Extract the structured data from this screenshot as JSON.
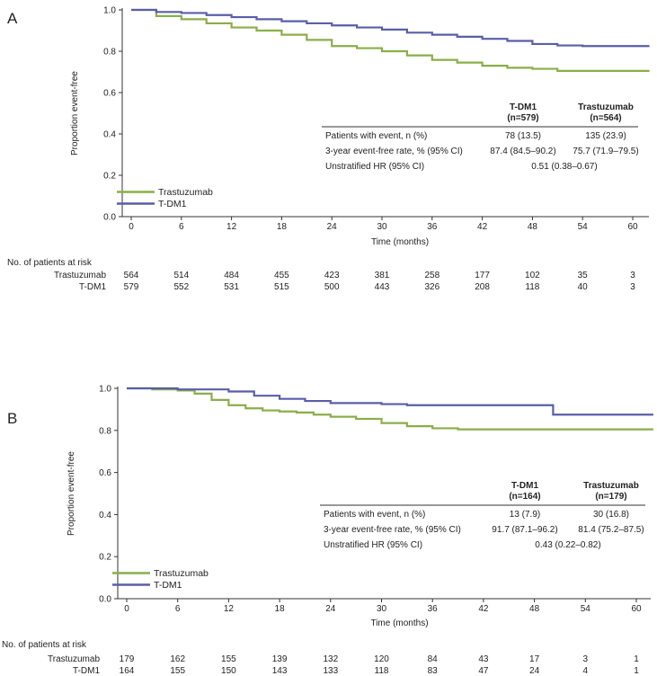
{
  "chart_data": [
    {
      "panel_label": "A",
      "type": "line",
      "xlabel": "Time (months)",
      "ylabel": "Proportion event-free",
      "xlim": [
        0,
        62
      ],
      "ylim": [
        0,
        1.0
      ],
      "x_ticks": [
        0,
        6,
        12,
        18,
        24,
        30,
        36,
        42,
        48,
        54,
        60
      ],
      "y_ticks": [
        "0.0",
        "0.2",
        "0.4",
        "0.6",
        "0.8",
        "1.0"
      ],
      "legend": [
        "Trastuzumab",
        "T-DM1"
      ],
      "series": [
        {
          "name": "Trastuzumab",
          "color": "#8aae48",
          "points": [
            [
              0,
              1.0
            ],
            [
              3,
              0.97
            ],
            [
              6,
              0.955
            ],
            [
              9,
              0.935
            ],
            [
              12,
              0.915
            ],
            [
              15,
              0.9
            ],
            [
              18,
              0.88
            ],
            [
              21,
              0.855
            ],
            [
              24,
              0.825
            ],
            [
              27,
              0.815
            ],
            [
              30,
              0.8
            ],
            [
              33,
              0.78
            ],
            [
              36,
              0.758
            ],
            [
              39,
              0.745
            ],
            [
              42,
              0.73
            ],
            [
              45,
              0.72
            ],
            [
              48,
              0.715
            ],
            [
              51,
              0.705
            ],
            [
              54,
              0.705
            ],
            [
              57,
              0.705
            ],
            [
              62,
              0.705
            ]
          ]
        },
        {
          "name": "T-DM1",
          "color": "#5a5ea8",
          "points": [
            [
              0,
              1.0
            ],
            [
              3,
              0.99
            ],
            [
              6,
              0.985
            ],
            [
              9,
              0.975
            ],
            [
              12,
              0.965
            ],
            [
              15,
              0.955
            ],
            [
              18,
              0.945
            ],
            [
              21,
              0.935
            ],
            [
              24,
              0.925
            ],
            [
              27,
              0.915
            ],
            [
              30,
              0.905
            ],
            [
              33,
              0.89
            ],
            [
              36,
              0.88
            ],
            [
              39,
              0.87
            ],
            [
              42,
              0.86
            ],
            [
              45,
              0.85
            ],
            [
              48,
              0.835
            ],
            [
              51,
              0.828
            ],
            [
              54,
              0.825
            ],
            [
              62,
              0.825
            ]
          ]
        }
      ],
      "stats": {
        "col1_head": "T-DM1",
        "col1_n": "(n=579)",
        "col2_head": "Trastuzumab",
        "col2_n": "(n=564)",
        "rows": [
          {
            "label": "Patients with event, n (%)",
            "v1": "78 (13.5)",
            "v2": "135 (23.9)"
          },
          {
            "label": "3-year event-free rate, % (95% CI)",
            "v1": "87.4 (84.5–90.2)",
            "v2": "75.7 (71.9–79.5)"
          }
        ],
        "hr_label": "Unstratified HR (95% CI)",
        "hr_value": "0.51 (0.38–0.67)"
      },
      "risk_title": "No. of patients at risk",
      "risk_rows": [
        {
          "name": "Trastuzumab",
          "values": [
            "564",
            "514",
            "484",
            "455",
            "423",
            "381",
            "258",
            "177",
            "102",
            "35",
            "3"
          ]
        },
        {
          "name": "T-DM1",
          "values": [
            "579",
            "552",
            "531",
            "515",
            "500",
            "443",
            "326",
            "208",
            "118",
            "40",
            "3"
          ]
        }
      ]
    },
    {
      "panel_label": "B",
      "type": "line",
      "xlabel": "Time (months)",
      "ylabel": "Proportion event-free",
      "xlim": [
        0,
        62
      ],
      "ylim": [
        0,
        1.0
      ],
      "x_ticks": [
        0,
        6,
        12,
        18,
        24,
        30,
        36,
        42,
        48,
        54,
        60
      ],
      "y_ticks": [
        "0.0",
        "0.2",
        "0.4",
        "0.6",
        "0.8",
        "1.0"
      ],
      "legend": [
        "Trastuzumab",
        "T-DM1"
      ],
      "series": [
        {
          "name": "Trastuzumab",
          "color": "#8aae48",
          "points": [
            [
              0,
              1.0
            ],
            [
              3,
              0.995
            ],
            [
              6,
              0.99
            ],
            [
              8,
              0.975
            ],
            [
              10,
              0.945
            ],
            [
              12,
              0.92
            ],
            [
              14,
              0.905
            ],
            [
              16,
              0.895
            ],
            [
              18,
              0.89
            ],
            [
              20,
              0.885
            ],
            [
              22,
              0.875
            ],
            [
              24,
              0.865
            ],
            [
              27,
              0.855
            ],
            [
              30,
              0.835
            ],
            [
              33,
              0.82
            ],
            [
              36,
              0.81
            ],
            [
              39,
              0.805
            ],
            [
              62,
              0.805
            ]
          ]
        },
        {
          "name": "T-DM1",
          "color": "#5a5ea8",
          "points": [
            [
              0,
              1.0
            ],
            [
              6,
              0.995
            ],
            [
              12,
              0.985
            ],
            [
              15,
              0.965
            ],
            [
              18,
              0.95
            ],
            [
              21,
              0.94
            ],
            [
              24,
              0.93
            ],
            [
              30,
              0.925
            ],
            [
              33,
              0.92
            ],
            [
              50,
              0.92
            ],
            [
              50.2,
              0.875
            ],
            [
              62,
              0.875
            ]
          ]
        }
      ],
      "stats": {
        "col1_head": "T-DM1",
        "col1_n": "(n=164)",
        "col2_head": "Trastuzumab",
        "col2_n": "(n=179)",
        "rows": [
          {
            "label": "Patients with event, n (%)",
            "v1": "13 (7.9)",
            "v2": "30 (16.8)"
          },
          {
            "label": "3-year event-free rate, % (95% CI)",
            "v1": "91.7 (87.1–96.2)",
            "v2": "81.4 (75.2–87.5)"
          }
        ],
        "hr_label": "Unstratified HR (95% CI)",
        "hr_value": "0.43 (0.22–0.82)"
      },
      "risk_title": "No. of patients at risk",
      "risk_rows": [
        {
          "name": "Trastuzumab",
          "values": [
            "179",
            "162",
            "155",
            "139",
            "132",
            "120",
            "84",
            "43",
            "17",
            "3",
            "1"
          ]
        },
        {
          "name": "T-DM1",
          "values": [
            "164",
            "155",
            "150",
            "143",
            "133",
            "118",
            "83",
            "47",
            "24",
            "4",
            "1"
          ]
        }
      ]
    }
  ]
}
